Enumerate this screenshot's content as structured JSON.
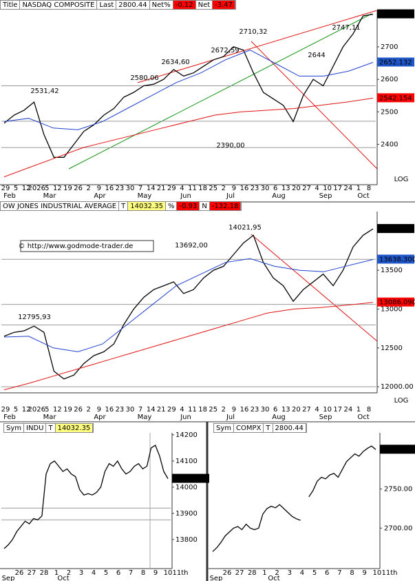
{
  "chart_data": [
    {
      "type": "line",
      "header": [
        {
          "text": "Title",
          "bg": "#ffffff"
        },
        {
          "text": "NASDAQ COMPOSITE",
          "bg": "#ffffff"
        },
        {
          "text": "Last",
          "bg": "#ffffff"
        },
        {
          "text": "2800.44",
          "bg": "#ffffff"
        },
        {
          "text": "Net%",
          "bg": "#ffffff"
        },
        {
          "text": "-0.12",
          "bg": "#ff0000"
        },
        {
          "text": "Net",
          "bg": "#ffffff"
        },
        {
          "text": "-3.47",
          "bg": "#ff0000"
        }
      ],
      "series": [
        {
          "color": "#000000",
          "values": [
            2465,
            2490,
            2505,
            2530,
            2430,
            2360,
            2360,
            2400,
            2440,
            2460,
            2490,
            2510,
            2545,
            2560,
            2580,
            2585,
            2600,
            2630,
            2610,
            2620,
            2640,
            2660,
            2670,
            2700,
            2690,
            2620,
            2560,
            2540,
            2520,
            2470,
            2550,
            2600,
            2580,
            2640,
            2700,
            2740,
            2795,
            2800.44
          ]
        },
        {
          "color": "#1f3fd0",
          "values": [
            2470,
            2480,
            2450,
            2445,
            2470,
            2510,
            2550,
            2590,
            2620,
            2660,
            2690,
            2650,
            2610,
            2610,
            2625,
            2652.132
          ]
        },
        {
          "color": "#e01010",
          "values": [
            2300,
            2330,
            2360,
            2390,
            2410,
            2430,
            2450,
            2470,
            2490,
            2500,
            2505,
            2510,
            2520,
            2530,
            2542.154
          ]
        }
      ],
      "ylim": [
        2280,
        2808
      ],
      "yticks": [
        2400,
        2500,
        2600,
        2700
      ],
      "markers": [
        {
          "value": 2800.44,
          "bg": "#000000"
        },
        {
          "value": 2652.132,
          "bg": "#1f57c8"
        },
        {
          "value": 2542.154,
          "bg": "#ff0000"
        }
      ],
      "hlines": [
        2390,
        2471,
        2580
      ],
      "annotations": [
        "2531,42",
        "2580,06",
        "2634,60",
        "2672,59",
        "2710,32",
        "2747,11",
        "2644",
        "2390,00"
      ],
      "scale_label": "LOG",
      "x_labels": [
        "29",
        "5",
        "12",
        "2026",
        "5",
        "12",
        "19",
        "26",
        "2",
        "9",
        "16",
        "23",
        "30",
        "7",
        "14",
        "21",
        "29",
        "4",
        "11",
        "18",
        "25",
        "2",
        "9",
        "16",
        "23",
        "30",
        "6",
        "13",
        "20",
        "27",
        "4",
        "10",
        "17",
        "24",
        "1",
        "8"
      ],
      "month_labels": [
        "Feb",
        "Mar",
        "Apr",
        "May",
        "Jun",
        "Jul",
        "Aug",
        "Sep",
        "Oct"
      ]
    },
    {
      "type": "line",
      "header": [
        {
          "text": "OW JONES INDUSTRIAL AVERAGE",
          "bg": "#ffffff"
        },
        {
          "text": "T",
          "bg": "#ffffff"
        },
        {
          "text": "14032.35",
          "bg": "#ffff80"
        },
        {
          "text": "%",
          "bg": "#ffffff"
        },
        {
          "text": "-0.93",
          "bg": "#ff0000"
        },
        {
          "text": "N",
          "bg": "#ffffff"
        },
        {
          "text": "-132.18",
          "bg": "#ff0000"
        }
      ],
      "series": [
        {
          "color": "#000000",
          "values": [
            12650,
            12700,
            12720,
            12780,
            12700,
            12200,
            12100,
            12150,
            12300,
            12400,
            12450,
            12550,
            12800,
            13000,
            13150,
            13250,
            13300,
            13350,
            13200,
            13250,
            13400,
            13500,
            13550,
            13700,
            13850,
            13950,
            13600,
            13400,
            13300,
            13100,
            13250,
            13350,
            13450,
            13300,
            13500,
            13800,
            13950,
            14032.35
          ]
        },
        {
          "color": "#1f3fd0",
          "values": [
            12640,
            12650,
            12500,
            12450,
            12550,
            12800,
            13050,
            13300,
            13450,
            13600,
            13650,
            13550,
            13500,
            13480,
            13560,
            13638.3
          ]
        },
        {
          "color": "#e01010",
          "values": [
            11960,
            12050,
            12150,
            12250,
            12350,
            12450,
            12550,
            12650,
            12750,
            12850,
            12950,
            13000,
            13020,
            13050,
            13086.09
          ]
        }
      ],
      "ylim": [
        11939,
        14246
      ],
      "yticks": [
        {
          "value": 12000,
          "label": "12000.00"
        },
        12500,
        13000,
        13500
      ],
      "markers": [
        {
          "value": 14032.35,
          "bg": "#000000"
        },
        {
          "value": 13638.3,
          "label": "13638.300",
          "bg": "#1f57c8"
        },
        {
          "value": 13086.09,
          "label": "13086.090",
          "bg": "#ff0000"
        }
      ],
      "hlines": [
        12000,
        12795,
        13060,
        13640
      ],
      "annotations": [
        "12795,93",
        "13692,00",
        "14021,95",
        "© http://www.godmode-trader.de"
      ],
      "scale_label": "LOG",
      "x_labels": [
        "29",
        "5",
        "12",
        "2026",
        "5",
        "12",
        "19",
        "26",
        "2",
        "9",
        "16",
        "23",
        "30",
        "7",
        "14",
        "21",
        "29",
        "4",
        "11",
        "18",
        "25",
        "2",
        "9",
        "16",
        "23",
        "30",
        "6",
        "13",
        "20",
        "27",
        "4",
        "10",
        "17",
        "24",
        "1",
        "8"
      ],
      "month_labels": [
        "Feb",
        "Mar",
        "Apr",
        "May",
        "Jun",
        "Jul",
        "Aug",
        "Sep",
        "Oct"
      ]
    },
    {
      "type": "line",
      "header": [
        {
          "text": "Sym",
          "bg": "#ffffff"
        },
        {
          "text": "INDU",
          "bg": "#ffffff"
        },
        {
          "text": "T",
          "bg": "#ffffff"
        },
        {
          "text": "14032.35",
          "bg": "#ffff80"
        }
      ],
      "series": [
        {
          "color": "#000000",
          "values": [
            13765,
            13780,
            13800,
            13830,
            13850,
            13870,
            13860,
            13880,
            13875,
            13890,
            14050,
            14090,
            14100,
            14080,
            14060,
            14070,
            14050,
            14040,
            13990,
            13970,
            13975,
            13970,
            13980,
            14000,
            14060,
            14090,
            14080,
            14100,
            14070,
            14050,
            14060,
            14080,
            14090,
            14070,
            14080,
            14150,
            14160,
            14120,
            14060,
            14032.35
          ]
        }
      ],
      "ylim": [
        13694,
        14205
      ],
      "yticks": [
        13800,
        13900,
        14000,
        14100,
        14200
      ],
      "markers": [
        {
          "value": 14032.35,
          "bg": "#000000"
        }
      ],
      "hlines": [
        13920,
        13875
      ],
      "x_labels": [
        "26",
        "27",
        "28",
        "1",
        "2",
        "3",
        "4",
        "5",
        "6",
        "7",
        "8",
        "9",
        "10",
        "11th"
      ],
      "month_labels": [
        "Sep",
        "Oct"
      ]
    },
    {
      "type": "line",
      "header": [
        {
          "text": "Sym",
          "bg": "#ffffff"
        },
        {
          "text": "COMPX",
          "bg": "#ffffff"
        },
        {
          "text": "T",
          "bg": "#ffffff"
        },
        {
          "text": "2800.44",
          "bg": "#ffffff"
        }
      ],
      "series": [
        {
          "color": "#000000",
          "values": [
            2670,
            2675,
            2682,
            2690,
            2695,
            2700,
            2702,
            2698,
            2705,
            2700,
            2698,
            2700,
            2718,
            2725,
            2728,
            2726,
            2730,
            2725,
            2720,
            2715,
            2712,
            2710,
            null,
            2740,
            2748,
            2760,
            2765,
            2763,
            2768,
            2770,
            2765,
            2775,
            2785,
            2790,
            2795,
            2792,
            2798,
            2802,
            2805,
            2800.44
          ]
        }
      ],
      "ylim": [
        2650,
        2821
      ],
      "yticks": [
        {
          "value": 2700,
          "label": "2700.00"
        },
        {
          "value": 2750,
          "label": "2750.00"
        }
      ],
      "markers": [
        {
          "value": 2800.44,
          "bg": "#000000"
        }
      ],
      "hlines": [],
      "x_labels": [
        "26",
        "27",
        "28",
        "1",
        "2",
        "3",
        "4",
        "5",
        "6",
        "7",
        "8",
        "9",
        "10",
        "11th"
      ],
      "month_labels": [
        "Sep",
        "Oct"
      ]
    }
  ]
}
